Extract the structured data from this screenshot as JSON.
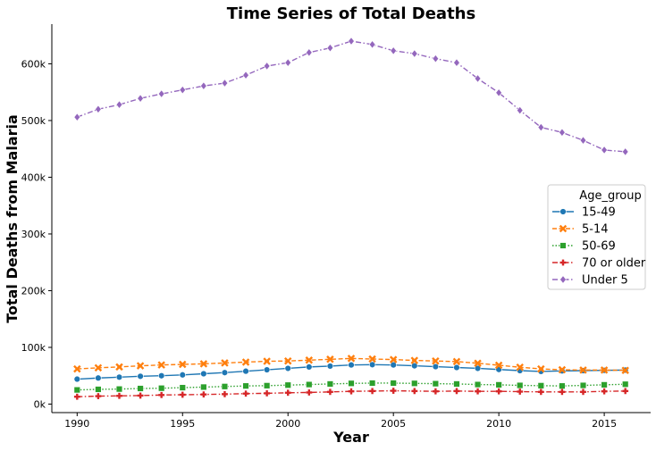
{
  "chart_data": {
    "type": "line",
    "title": "Time Series of Total Deaths",
    "xlabel": "Year",
    "ylabel": "Total Deaths from Malaria",
    "xlim": [
      1988.8,
      2017.2
    ],
    "ylim": [
      -15000,
      670000
    ],
    "x_ticks": [
      1990,
      1995,
      2000,
      2005,
      2010,
      2015
    ],
    "x_tick_labels": [
      "1990",
      "1995",
      "2000",
      "2005",
      "2010",
      "2015"
    ],
    "y_ticks": [
      0,
      100000,
      200000,
      300000,
      400000,
      500000,
      600000
    ],
    "y_tick_labels": [
      "0k",
      "100k",
      "200k",
      "300k",
      "400k",
      "500k",
      "600k"
    ],
    "grid": false,
    "legend": {
      "title": "Age_group",
      "placement": "center-right"
    },
    "x": [
      1990,
      1991,
      1992,
      1993,
      1994,
      1995,
      1996,
      1997,
      1998,
      1999,
      2000,
      2001,
      2002,
      2003,
      2004,
      2005,
      2006,
      2007,
      2008,
      2009,
      2010,
      2011,
      2012,
      2013,
      2014,
      2015,
      2016
    ],
    "series": [
      {
        "name": "15-49",
        "color": "#1f77b4",
        "marker": "circle",
        "dash": "solid",
        "values": [
          44000,
          46000,
          47500,
          49000,
          50000,
          51500,
          53500,
          55500,
          58000,
          60500,
          63000,
          65500,
          67000,
          69000,
          69500,
          69000,
          67500,
          66000,
          64500,
          63000,
          61000,
          59000,
          57500,
          58500,
          59000,
          59500,
          60000
        ]
      },
      {
        "name": "5-14",
        "color": "#ff7f0e",
        "marker": "x",
        "dash": "dashed",
        "values": [
          62000,
          64000,
          65500,
          67500,
          69000,
          70000,
          71000,
          72500,
          74000,
          75500,
          76000,
          77500,
          79000,
          80500,
          79500,
          78500,
          77000,
          76000,
          75000,
          72000,
          68500,
          65000,
          62000,
          60500,
          60000,
          60000,
          59500
        ]
      },
      {
        "name": "50-69",
        "color": "#2ca02c",
        "marker": "square",
        "dash": "dotted",
        "values": [
          25000,
          26000,
          26500,
          27500,
          28000,
          29000,
          30000,
          31000,
          32000,
          32500,
          33500,
          34500,
          35500,
          36500,
          37000,
          37000,
          36500,
          36000,
          35500,
          34500,
          34000,
          33000,
          32500,
          32000,
          33000,
          34000,
          35000
        ]
      },
      {
        "name": "70 or older",
        "color": "#d62728",
        "marker": "plus",
        "dash": "dashdot",
        "values": [
          13000,
          14000,
          14500,
          15000,
          16000,
          16500,
          17000,
          17500,
          18500,
          19000,
          20000,
          20500,
          21500,
          22500,
          23000,
          23500,
          23000,
          22500,
          23000,
          22500,
          22500,
          22000,
          21500,
          21500,
          21500,
          22500,
          23000
        ]
      },
      {
        "name": "Under 5",
        "color": "#9467bd",
        "marker": "diamond",
        "dash": "dashdot",
        "values": [
          506000,
          520000,
          528000,
          539000,
          547000,
          554000,
          561000,
          566000,
          580000,
          596000,
          602000,
          620000,
          628000,
          640000,
          634000,
          623000,
          618000,
          609000,
          602000,
          574000,
          549000,
          518000,
          488000,
          479000,
          465000,
          448000,
          445000
        ]
      }
    ]
  }
}
